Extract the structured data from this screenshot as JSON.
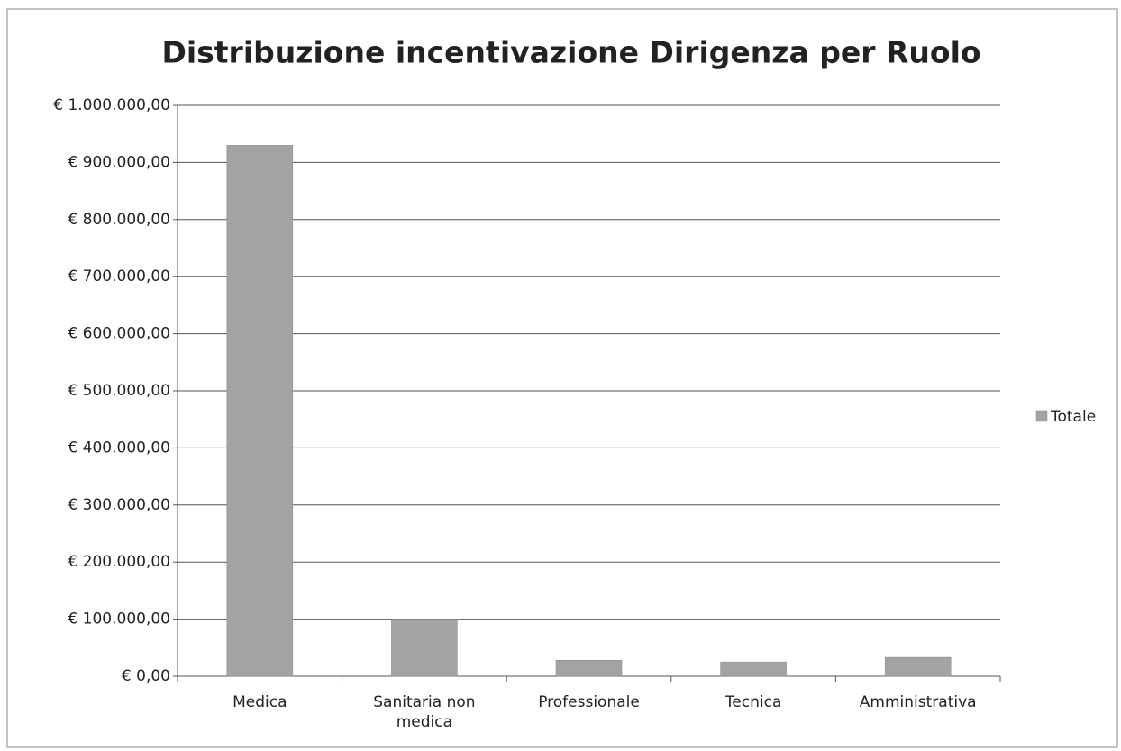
{
  "chart_data": {
    "type": "bar",
    "title": "Distribuzione incentivazione Dirigenza per Ruolo",
    "categories": [
      "Medica",
      "Sanitaria non medica",
      "Professionale",
      "Tecnica",
      "Amministrativa"
    ],
    "series": [
      {
        "name": "Totale",
        "color": "#a3a3a3",
        "values": [
          930000,
          100000,
          28000,
          25000,
          33000
        ]
      }
    ],
    "ylim": [
      0,
      1000000
    ],
    "yticks": [
      {
        "value": 0,
        "label": "€ 0,00"
      },
      {
        "value": 100000,
        "label": "€ 100.000,00"
      },
      {
        "value": 200000,
        "label": "€ 200.000,00"
      },
      {
        "value": 300000,
        "label": "€ 300.000,00"
      },
      {
        "value": 400000,
        "label": "€ 400.000,00"
      },
      {
        "value": 500000,
        "label": "€ 500.000,00"
      },
      {
        "value": 600000,
        "label": "€ 600.000,00"
      },
      {
        "value": 700000,
        "label": "€ 700.000,00"
      },
      {
        "value": 800000,
        "label": "€ 800.000,00"
      },
      {
        "value": 900000,
        "label": "€ 900.000,00"
      },
      {
        "value": 1000000,
        "label": "€ 1.000.000,00"
      }
    ],
    "grid": true,
    "legend": "right"
  }
}
